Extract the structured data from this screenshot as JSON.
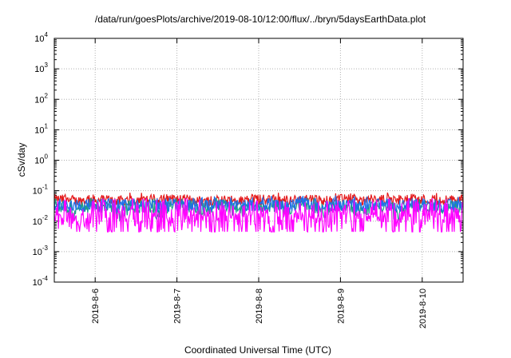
{
  "chart_data": {
    "type": "line",
    "title": "/data/run/goesPlots/archive/2019-08-10/12:00/flux/../bryn/5daysEarthData.plot",
    "xlabel": "Coordinated Universal Time (UTC)",
    "ylabel": "cSv/day",
    "yscale": "log",
    "ylim": [
      0.0001,
      10000
    ],
    "ytick_labels": [
      {
        "base": "10",
        "exp": "-4",
        "value": 0.0001
      },
      {
        "base": "10",
        "exp": "-3",
        "value": 0.001
      },
      {
        "base": "10",
        "exp": "-2",
        "value": 0.01
      },
      {
        "base": "10",
        "exp": "-1",
        "value": 0.1
      },
      {
        "base": "10",
        "exp": "0",
        "value": 1
      },
      {
        "base": "10",
        "exp": "1",
        "value": 10
      },
      {
        "base": "10",
        "exp": "2",
        "value": 100
      },
      {
        "base": "10",
        "exp": "3",
        "value": 1000
      },
      {
        "base": "10",
        "exp": "4",
        "value": 10000
      }
    ],
    "xlim": [
      "2019-08-05T12:00",
      "2019-08-10T12:00"
    ],
    "xtick_labels": [
      "2019-8-6",
      "2019-8-7",
      "2019-8-8",
      "2019-8-9",
      "2019-8-10"
    ],
    "grid": true,
    "series": [
      {
        "color": "#e41a1c",
        "typical": 0.05,
        "peak": 0.09,
        "low": 0.035
      },
      {
        "color": "#1f9e89",
        "typical": 0.03,
        "peak": 0.06,
        "low": 0.012
      },
      {
        "color": "#1f6fe8",
        "typical": 0.035,
        "peak": 0.07,
        "low": 0.02
      },
      {
        "color": "#ff00ff",
        "typical": 0.009,
        "peak": 0.05,
        "low": 0.005
      }
    ]
  }
}
